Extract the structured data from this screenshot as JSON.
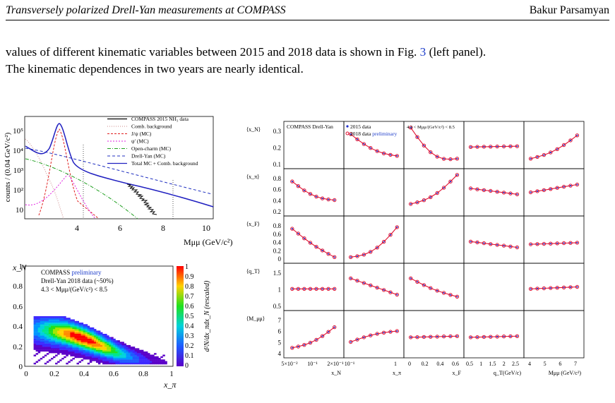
{
  "header": {
    "left": "Transversely polarized Drell-Yan measurements at COMPASS",
    "right": "Bakur Parsamyan"
  },
  "paragraph": {
    "l1a": "values of different kinematic variables between 2015 and 2018 data is shown in Fig. ",
    "fig_ref": "3",
    "l1b": " (left panel).",
    "l2": "The kinematic dependences in two years are nearly identical."
  },
  "mass_plot": {
    "ylabel": "counts / (0.04 GeV/c²)",
    "xlabel": "Mμμ (GeV/c²)",
    "yticks": [
      "10⁵",
      "10⁴",
      "10³",
      "10²",
      "10"
    ],
    "xticks": [
      "4",
      "6",
      "8",
      "10"
    ],
    "legend": [
      {
        "label": "COMPASS 2015 NH₃ data",
        "color": "#000000",
        "dash": ""
      },
      {
        "label": "Comb. background",
        "color": "#cc8888",
        "dash": "1,2"
      },
      {
        "label": "J/ψ (MC)",
        "color": "#e02020",
        "dash": "3,2"
      },
      {
        "label": "ψ' (MC)",
        "color": "#e020e0",
        "dash": "2,2"
      },
      {
        "label": "Open-charm (MC)",
        "color": "#20a020",
        "dash": "5,2,1,2"
      },
      {
        "label": "Drell-Yan (MC)",
        "color": "#2030c0",
        "dash": "4,3"
      },
      {
        "label": "Total MC + Comb. background",
        "color": "#2020c0",
        "dash": ""
      }
    ]
  },
  "heat_plot": {
    "ylabel": "x_N",
    "xlabel": "x_π",
    "zlabel": "d²N/dx_πdx_N (rescaled)",
    "box_l1a": "COMPASS ",
    "box_l1b": "preliminary",
    "box_l2": "Drell-Yan 2018 data (~50%)",
    "box_l3": "4.3 < Mμμ/(GeV/c²) < 8.5",
    "xticks": [
      "0",
      "0.2",
      "0.4",
      "0.6",
      "0.8",
      "1"
    ],
    "yticks": [
      "0",
      "0.2",
      "0.4",
      "0.6",
      "0.8",
      "1"
    ],
    "zticks": [
      "1",
      "0.9",
      "0.8",
      "0.7",
      "0.6",
      "0.5",
      "0.4",
      "0.3",
      "0.2",
      "0.1",
      "0"
    ]
  },
  "grid_plot": {
    "row_labels": [
      "⟨x_N⟩",
      "⟨x_π⟩",
      "⟨x_F⟩",
      "⟨q_T⟩",
      "⟨M_μμ⟩"
    ],
    "cell_label_1": "COMPASS Drell-Yan",
    "legend_2015": "2015 data",
    "legend_2018a": "2018 data ",
    "legend_2018b": "preliminary",
    "mass_range": "4.3 < Mμμ/(GeV/c²) < 8.5",
    "col_xlabels": [
      "x_N",
      "x_π",
      "x_F",
      "q_T(GeV/c)",
      "Mμμ (GeV/c²)"
    ],
    "col_xticks": [
      [
        "5×10⁻²",
        "10⁻¹",
        "2×10⁻¹"
      ],
      [
        "10⁻¹",
        "1"
      ],
      [
        "0",
        "0.2",
        "0.4",
        "0.6"
      ],
      [
        "0.5",
        "1",
        "1.5",
        "2",
        "2.5"
      ],
      [
        "4",
        "5",
        "6",
        "7"
      ]
    ],
    "row_yticks": [
      [
        "0.3",
        "0.2",
        "0.1"
      ],
      [
        "0.8",
        "0.6",
        "0.4",
        "0.2"
      ],
      [
        "0.8",
        "0.6",
        "0.4",
        "0.2",
        "0"
      ],
      [
        "1.5",
        "1",
        "0.5"
      ],
      [
        "7",
        "6",
        "5",
        "4"
      ]
    ]
  }
}
